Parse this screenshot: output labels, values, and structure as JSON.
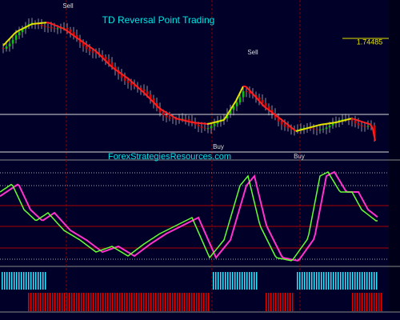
{
  "header": {
    "title": "TD Reversal Point Trading"
  },
  "signals": {
    "sell": [
      "Sell",
      "Sell"
    ],
    "buy": [
      "Buy",
      "Buy"
    ]
  },
  "price_label": "1.74485",
  "watermark": "ForexStrategiesResources.com"
}
